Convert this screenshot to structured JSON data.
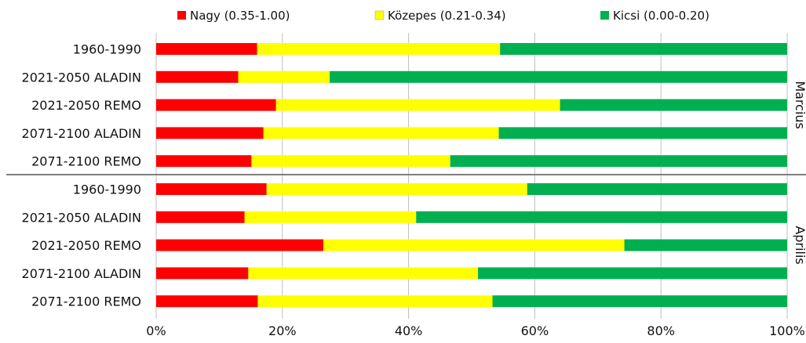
{
  "chart_data": {
    "type": "bar",
    "stacked": true,
    "orientation": "horizontal",
    "legend": [
      {
        "name": "Nagy (0.35-1.00)",
        "color": "#ff0000"
      },
      {
        "name": "Közepes (0.21-0.34)",
        "color": "#ffff00"
      },
      {
        "name": "Kicsi (0.00-0.20)",
        "color": "#00b050"
      }
    ],
    "x_ticks": [
      "0%",
      "20%",
      "40%",
      "60%",
      "80%",
      "100%"
    ],
    "xlim": [
      0,
      100
    ],
    "grid": true,
    "legend_position": "top",
    "groups": [
      {
        "name": "Marcius",
        "rows": [
          {
            "label": "1960-1990",
            "values": [
              16,
              38.5,
              45.5
            ]
          },
          {
            "label": "2021-2050 ALADIN",
            "values": [
              13,
              14.5,
              72.5
            ]
          },
          {
            "label": "2021-2050 REMO",
            "values": [
              19,
              45,
              36
            ]
          },
          {
            "label": "2071-2100 ALADIN",
            "values": [
              17,
              37.3,
              45.7
            ]
          },
          {
            "label": "2071-2100 REMO",
            "values": [
              15.1,
              31.5,
              53.4
            ]
          }
        ]
      },
      {
        "name": "Aprilis",
        "rows": [
          {
            "label": "1960-1990",
            "values": [
              17.5,
              41.3,
              41.2
            ]
          },
          {
            "label": "2021-2050 ALADIN",
            "values": [
              14,
              27.2,
              58.8
            ]
          },
          {
            "label": "2021-2050 REMO",
            "values": [
              26.5,
              47.7,
              25.8
            ]
          },
          {
            "label": "2071-2100 ALADIN",
            "values": [
              14.6,
              36.4,
              49
            ]
          },
          {
            "label": "2071-2100 REMO",
            "values": [
              16.1,
              37.2,
              46.7
            ]
          }
        ]
      }
    ]
  }
}
